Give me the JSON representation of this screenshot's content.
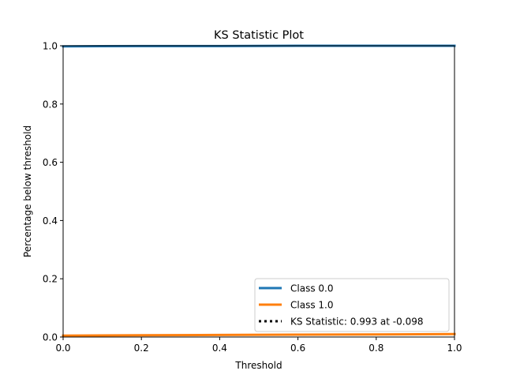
{
  "chart_data": {
    "type": "line",
    "title": "KS Statistic Plot",
    "xlabel": "Threshold",
    "ylabel": "Percentage below threshold",
    "xlim": [
      0.0,
      1.0
    ],
    "ylim": [
      0.0,
      1.0
    ],
    "xticks": [
      "0.0",
      "0.2",
      "0.4",
      "0.6",
      "0.8",
      "1.0"
    ],
    "yticks": [
      "0.0",
      "0.2",
      "0.4",
      "0.6",
      "0.8",
      "1.0"
    ],
    "grid": false,
    "legend_position": "lower-right",
    "series": [
      {
        "name": "Class 0.0",
        "color": "#1f77b4",
        "style": "solid",
        "x": [
          0.0,
          0.2,
          0.4,
          0.6,
          0.8,
          1.0
        ],
        "y": [
          0.998,
          0.999,
          0.999,
          1.0,
          1.0,
          1.0
        ]
      },
      {
        "name": "Class 1.0",
        "color": "#ff7f0e",
        "style": "solid",
        "x": [
          0.0,
          0.2,
          0.4,
          0.6,
          0.8,
          1.0
        ],
        "y": [
          0.005,
          0.006,
          0.007,
          0.008,
          0.009,
          0.01
        ]
      }
    ],
    "ks_statistic": {
      "label": "KS Statistic: 0.993 at -0.098",
      "value": 0.993,
      "at": -0.098,
      "color": "#000000",
      "style": "dotted"
    }
  }
}
